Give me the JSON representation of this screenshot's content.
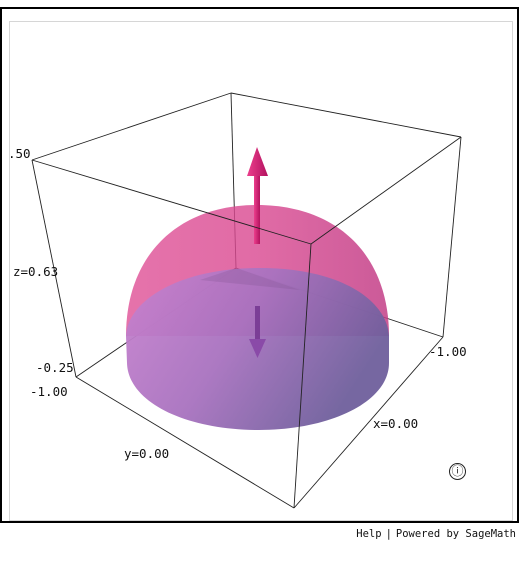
{
  "axis_labels": {
    "z_top": ".50",
    "z_mid": "z=0.63",
    "z_bottom": "-0.25",
    "y_min": "-1.00",
    "y_mid": "y=0.00",
    "x_min": "-1.00",
    "x_mid": "x=0.00"
  },
  "icons": {
    "info": "ⓘ"
  },
  "footer": {
    "help_label": "Help",
    "separator": "|",
    "powered_label": "Powered by SageMath"
  },
  "colors": {
    "hemisphere_outer": "#d9468f",
    "hemisphere_base": "#b06bc0",
    "arrow_up": "#d61a74",
    "arrow_down": "#8a4aa8",
    "box_edges": "#222222"
  }
}
